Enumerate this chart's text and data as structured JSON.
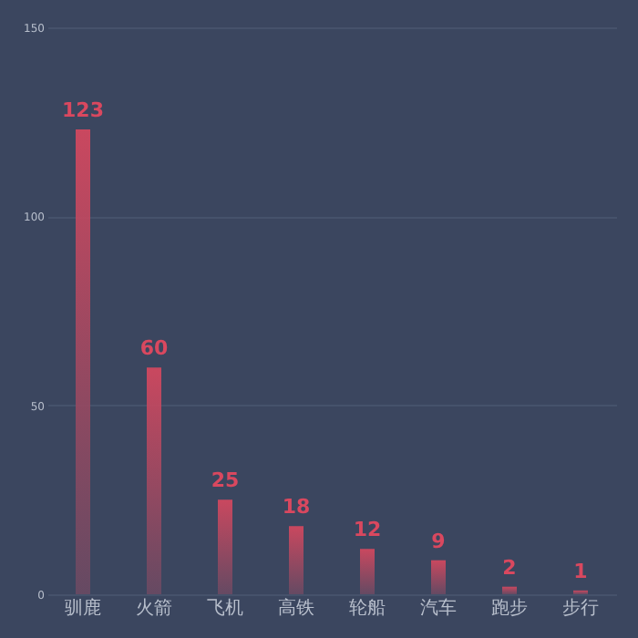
{
  "chart_data": {
    "type": "bar",
    "categories": [
      "驯鹿",
      "火箭",
      "飞机",
      "高铁",
      "轮船",
      "汽车",
      "跑步",
      "步行"
    ],
    "values": [
      123,
      60,
      25,
      18,
      12,
      9,
      2,
      1
    ],
    "color": "#d9485f",
    "ylim": [
      0,
      150
    ],
    "yticks": [
      0,
      50,
      100,
      150
    ],
    "grid": "y",
    "data_labels": true
  }
}
